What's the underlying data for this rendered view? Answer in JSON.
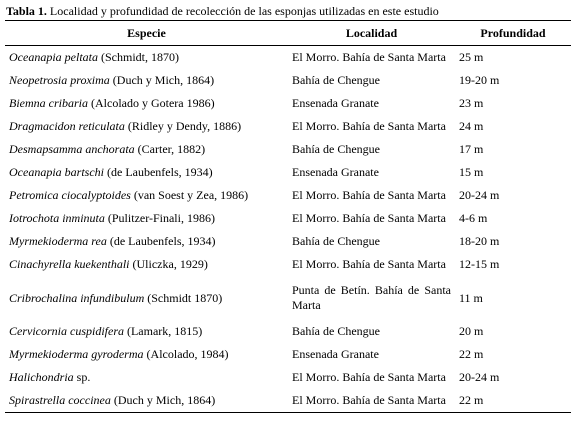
{
  "caption": {
    "label": "Tabla 1.",
    "text": "Localidad y profundidad de recolección de las esponjas utilizadas en este estudio"
  },
  "table": {
    "headers": [
      "Especie",
      "Localidad",
      "Profundidad"
    ],
    "rows": [
      [
        {
          "name": "Oceanapia peltata",
          "authority": "(Schmidt, 1870)"
        },
        "El Morro. Bahía de Santa Marta",
        "25 m"
      ],
      [
        {
          "name": "Neopetrosia proxima",
          "authority": "(Duch y Mich, 1864)"
        },
        "Bahía de Chengue",
        "19-20 m"
      ],
      [
        {
          "name": "Biemna cribaria",
          "authority": "(Alcolado y Gotera 1986)"
        },
        "Ensenada Granate",
        "23 m"
      ],
      [
        {
          "name": "Dragmacidon reticulata",
          "authority": "(Ridley y Dendy, 1886)"
        },
        "El Morro. Bahía de Santa Marta",
        "24 m"
      ],
      [
        {
          "name": "Desmapsamma anchorata",
          "authority": "(Carter, 1882)"
        },
        "Bahía de Chengue",
        "17 m"
      ],
      [
        {
          "name": "Oceanapia bartschi",
          "authority": "(de Laubenfels, 1934)"
        },
        "Ensenada Granate",
        "15 m"
      ],
      [
        {
          "name": "Petromica ciocalyptoides",
          "authority": "(van Soest y Zea, 1986)"
        },
        "El Morro. Bahía de Santa Marta",
        "20-24 m"
      ],
      [
        {
          "name": "Iotrochota inminuta",
          "authority": "(Pulitzer-Finali, 1986)"
        },
        "El Morro. Bahía de Santa Marta",
        "4-6 m"
      ],
      [
        {
          "name": "Myrmekioderma rea",
          "authority": "(de Laubenfels, 1934)"
        },
        "Bahía de Chengue",
        "18-20 m"
      ],
      [
        {
          "name": "Cinachyrella kuekenthali",
          "authority": "(Uliczka, 1929)"
        },
        "El Morro. Bahía de Santa Marta",
        "12-15 m"
      ],
      [
        {
          "name": "Cribrochalina infundibulum",
          "authority": "(Schmidt 1870)"
        },
        "Punta de Betín. Bahía de Santa Marta",
        "11 m"
      ],
      [
        {
          "name": "Cervicornia cuspidifera",
          "authority": "(Lamark, 1815)"
        },
        "Bahía de Chengue",
        "20 m"
      ],
      [
        {
          "name": "Myrmekioderma gyroderma",
          "authority": "(Alcolado, 1984)"
        },
        "Ensenada Granate",
        "22 m"
      ],
      [
        {
          "name": "Halichondria",
          "authority": "sp."
        },
        "El Morro. Bahía de Santa Marta",
        "20-24 m"
      ],
      [
        {
          "name": "Spirastrella coccinea",
          "authority": "(Duch y Mich, 1864)"
        },
        "El Morro. Bahía de Santa Marta",
        "22 m"
      ]
    ]
  }
}
